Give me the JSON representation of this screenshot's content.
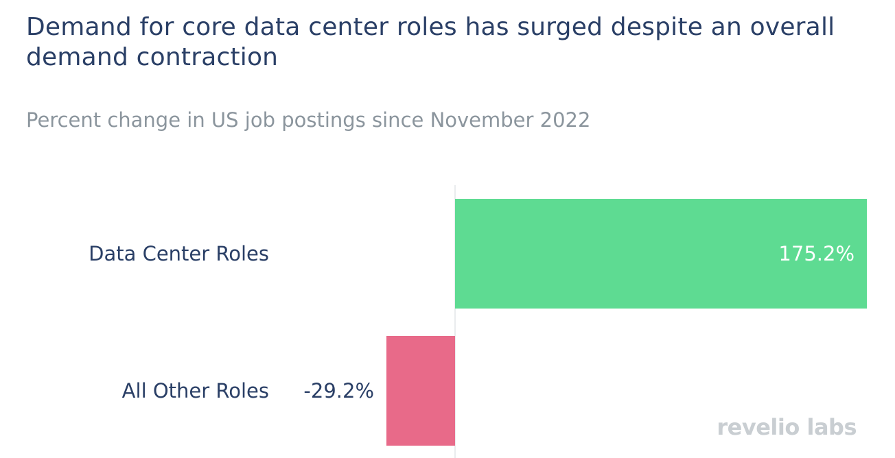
{
  "chart_data": {
    "type": "bar",
    "orientation": "horizontal",
    "title": "Demand for core data center roles has surged despite an overall demand contraction",
    "subtitle": "Percent change in US job postings since November 2022",
    "categories": [
      "Data Center Roles",
      "All Other Roles"
    ],
    "values": [
      175.2,
      -29.2
    ],
    "data_labels": [
      "175.2%",
      "-29.2%"
    ],
    "colors": [
      "#5edb92",
      "#e86a89"
    ],
    "xlim": [
      -29.2,
      175.2
    ],
    "grid": false,
    "legend": "none"
  },
  "logo": {
    "text": "revelio labs"
  }
}
